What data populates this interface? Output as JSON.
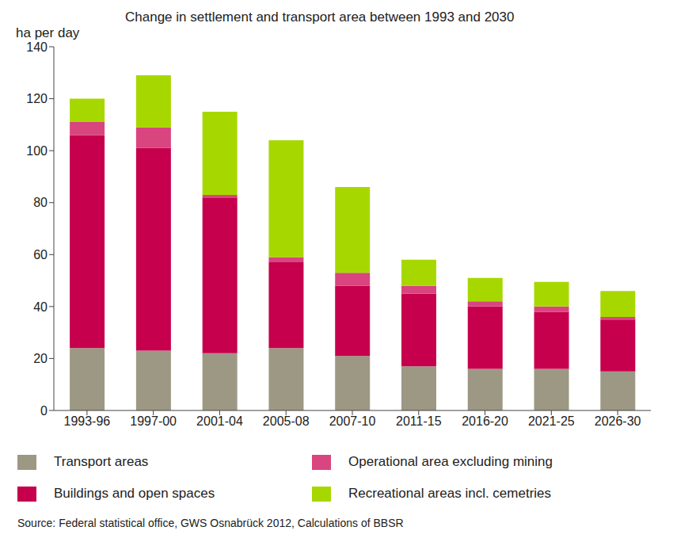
{
  "chart_data": {
    "type": "bar",
    "title": "Change in settlement and transport area between 1993 and 2030",
    "y_label": "ha per day",
    "source": "Source: Federal statistical office, GWS Osnabrück 2012, Calculations of BBSR",
    "categories": [
      "1993-96",
      "1997-00",
      "2001-04",
      "2005-08",
      "2007-10",
      "2011-15",
      "2016-20",
      "2021-25",
      "2026-30"
    ],
    "series": [
      {
        "name": "Transport areas",
        "color": "#9c9884",
        "values": [
          24,
          23,
          22,
          24,
          21,
          17,
          16,
          16,
          15
        ]
      },
      {
        "name": "Buildings and open spaces",
        "color": "#c6004c",
        "values": [
          82,
          78,
          60,
          33,
          27,
          28,
          24,
          22,
          20
        ]
      },
      {
        "name": "Operational area excluding mining",
        "color": "#d8457f",
        "values": [
          5,
          8,
          1,
          2,
          5,
          3,
          2,
          2,
          1
        ]
      },
      {
        "name": "Recreational areas incl. cemetries",
        "color": "#a6d800",
        "values": [
          9,
          20,
          32,
          45,
          33,
          10,
          9,
          9.5,
          10
        ]
      }
    ],
    "stacked": true,
    "ylim": [
      0,
      140
    ],
    "yticks": [
      0,
      20,
      40,
      60,
      80,
      100,
      120,
      140
    ],
    "grid": false
  }
}
